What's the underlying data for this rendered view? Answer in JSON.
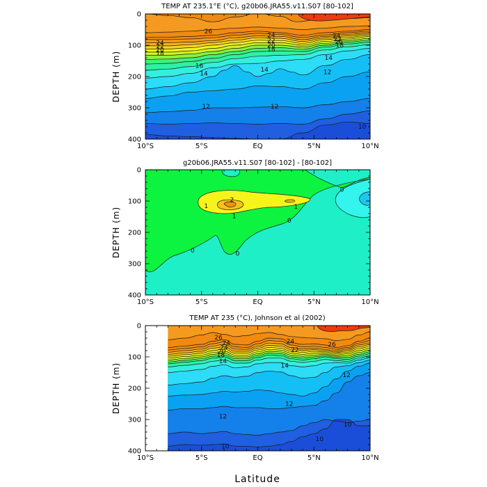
{
  "figure": {
    "xlabel": "Latitude"
  },
  "chart_data": [
    {
      "type": "contour",
      "title": "TEMP AT 235.1°E (°C), g20b06.JRA55.v11.S07 [80-102]",
      "ylabel": "DEPTH (m)",
      "xlabel": "",
      "x_ticks": [
        "10°S",
        "5°S",
        "EQ",
        "5°N",
        "10°N"
      ],
      "y_ticks": [
        "0",
        "100",
        "200",
        "300",
        "400"
      ],
      "xlim": [
        -10,
        10
      ],
      "ylim": [
        400,
        0
      ],
      "contour_interval": 1,
      "contour_labels": [
        {
          "text": "26",
          "lat": -4.4,
          "depth": 55
        },
        {
          "text": "24",
          "lat": 1.2,
          "depth": 68
        },
        {
          "text": "22",
          "lat": 1.2,
          "depth": 84
        },
        {
          "text": "20",
          "lat": 1.2,
          "depth": 100
        },
        {
          "text": "18",
          "lat": 1.2,
          "depth": 113
        },
        {
          "text": "24",
          "lat": 7.0,
          "depth": 70
        },
        {
          "text": "22",
          "lat": 7.1,
          "depth": 80
        },
        {
          "text": "20",
          "lat": 7.2,
          "depth": 90
        },
        {
          "text": "18",
          "lat": 7.3,
          "depth": 100
        },
        {
          "text": "24",
          "lat": -8.7,
          "depth": 92
        },
        {
          "text": "22",
          "lat": -8.7,
          "depth": 103
        },
        {
          "text": "20",
          "lat": -8.7,
          "depth": 114
        },
        {
          "text": "18",
          "lat": -8.7,
          "depth": 125
        },
        {
          "text": "16",
          "lat": -5.2,
          "depth": 165
        },
        {
          "text": "14",
          "lat": -4.8,
          "depth": 190
        },
        {
          "text": "14",
          "lat": 0.6,
          "depth": 178
        },
        {
          "text": "14",
          "lat": 6.3,
          "depth": 140
        },
        {
          "text": "12",
          "lat": 6.2,
          "depth": 185
        },
        {
          "text": "12",
          "lat": -4.6,
          "depth": 295
        },
        {
          "text": "12",
          "lat": 1.5,
          "depth": 295
        },
        {
          "text": "10",
          "lat": 9.3,
          "depth": 360
        }
      ]
    },
    {
      "type": "contour",
      "title": "g20b06.JRA55.v11.S07 [80-102] - [80-102]",
      "ylabel": "DEPTH (m)",
      "xlabel": "",
      "x_ticks": [
        "10°S",
        "5°S",
        "EQ",
        "5°N",
        "10°N"
      ],
      "y_ticks": [
        "0",
        "100",
        "200",
        "300",
        "400"
      ],
      "xlim": [
        -10,
        10
      ],
      "ylim": [
        400,
        0
      ],
      "contour_interval": 1,
      "contour_labels": [
        {
          "text": "2",
          "lat": -2.3,
          "depth": 96
        },
        {
          "text": "1",
          "lat": -4.6,
          "depth": 115
        },
        {
          "text": "1",
          "lat": -2.1,
          "depth": 148
        },
        {
          "text": "1",
          "lat": 3.4,
          "depth": 118
        },
        {
          "text": "0",
          "lat": 7.5,
          "depth": 63
        },
        {
          "text": "0",
          "lat": 2.8,
          "depth": 162
        },
        {
          "text": "0",
          "lat": -5.8,
          "depth": 258
        },
        {
          "text": "0",
          "lat": -1.8,
          "depth": 268
        }
      ]
    },
    {
      "type": "contour",
      "title": "TEMP AT 235 (°C), Johnson et al (2002)",
      "ylabel": "DEPTH (m)",
      "xlabel": "Latitude",
      "x_ticks": [
        "10°S",
        "5°S",
        "EQ",
        "5°N",
        "10°N"
      ],
      "y_ticks": [
        "0",
        "100",
        "200",
        "300",
        "400"
      ],
      "xlim": [
        -10,
        10
      ],
      "ylim": [
        400,
        0
      ],
      "data_lat_range": [
        -8,
        10
      ],
      "contour_interval": 1,
      "contour_labels": [
        {
          "text": "26",
          "lat": -3.5,
          "depth": 38
        },
        {
          "text": "24",
          "lat": -2.8,
          "depth": 55
        },
        {
          "text": "24",
          "lat": 2.9,
          "depth": 50
        },
        {
          "text": "22",
          "lat": 3.3,
          "depth": 78
        },
        {
          "text": "26",
          "lat": 6.6,
          "depth": 60
        },
        {
          "text": "24",
          "lat": -3.0,
          "depth": 70
        },
        {
          "text": "20",
          "lat": -3.2,
          "depth": 82
        },
        {
          "text": "18",
          "lat": -3.3,
          "depth": 93
        },
        {
          "text": "14",
          "lat": -3.1,
          "depth": 113
        },
        {
          "text": "14",
          "lat": 2.4,
          "depth": 128
        },
        {
          "text": "12",
          "lat": 7.9,
          "depth": 158
        },
        {
          "text": "12",
          "lat": 2.8,
          "depth": 250
        },
        {
          "text": "12",
          "lat": -3.1,
          "depth": 290
        },
        {
          "text": "10",
          "lat": 5.5,
          "depth": 362
        },
        {
          "text": "10",
          "lat": 8.0,
          "depth": 315
        },
        {
          "text": "10",
          "lat": -2.9,
          "depth": 385
        }
      ]
    }
  ]
}
